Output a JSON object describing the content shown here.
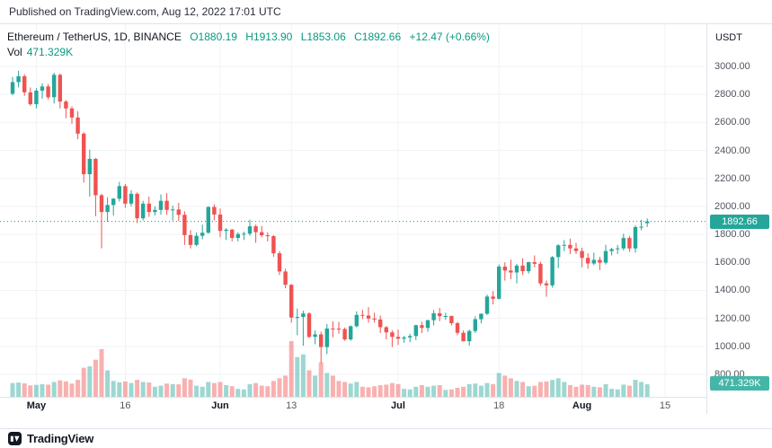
{
  "published_bar": {
    "text": "Published on TradingView.com, Aug 12, 2022 17:01 UTC"
  },
  "legend": {
    "symbol": "Ethereum / TetherUS, 1D, BINANCE",
    "o_label": "O",
    "o_value": "1880.19",
    "h_label": "H",
    "h_value": "1913.90",
    "l_label": "L",
    "l_value": "1853.06",
    "c_label": "C",
    "c_value": "1892.66",
    "change": "+12.47 (+0.66%)",
    "vol_label": "Vol",
    "vol_value": "471.329K"
  },
  "price_axis": {
    "currency": "USDT",
    "labels": [
      "3000.00",
      "2800.00",
      "2600.00",
      "2400.00",
      "2200.00",
      "2000.00",
      "1800.00",
      "1600.00",
      "1400.00",
      "1200.00",
      "1000.00",
      "800.00"
    ],
    "last_price_badge": "1892.66",
    "volume_badge": "471.329K"
  },
  "time_axis": {
    "ticks": [
      {
        "label": "May",
        "idx": 4,
        "major": true
      },
      {
        "label": "16",
        "idx": 19,
        "major": false
      },
      {
        "label": "Jun",
        "idx": 35,
        "major": true
      },
      {
        "label": "13",
        "idx": 47,
        "major": false
      },
      {
        "label": "Jul",
        "idx": 65,
        "major": true
      },
      {
        "label": "18",
        "idx": 82,
        "major": false
      },
      {
        "label": "Aug",
        "idx": 96,
        "major": true
      },
      {
        "label": "15",
        "idx": 110,
        "major": false
      }
    ]
  },
  "footer": {
    "brand": "TradingView"
  },
  "colors": {
    "up": "#26a69a",
    "down": "#ef5350",
    "vol_up": "rgba(38,166,154,0.45)",
    "vol_down": "rgba(239,83,80,0.45)",
    "grid": "#f0f3f7",
    "last_price_line": "#089981",
    "price_badge_bg": "#26a69a",
    "vol_badge_bg": "#44b6a8",
    "value_text": "#089981"
  },
  "chart_data": {
    "type": "candlestick+volume",
    "title": "Ethereum / TetherUS, 1D, BINANCE",
    "symbol": "ETH/USDT",
    "exchange": "BINANCE",
    "interval": "1D",
    "start_date": "2022-04-27",
    "end_date": "2022-08-12",
    "last": {
      "open": 1880.19,
      "high": 1913.9,
      "low": 1853.06,
      "close": 1892.66,
      "change": 12.47,
      "change_pct": 0.66,
      "volume": "471.329K"
    },
    "y_axis": {
      "min": 800,
      "max": 3000,
      "step": 200,
      "unit": "USDT"
    },
    "x_ticks": [
      "May",
      "16",
      "Jun",
      "13",
      "Jul",
      "18",
      "Aug",
      "15"
    ],
    "legend_position": "top-left",
    "grid": true,
    "candles_format": [
      "open",
      "high",
      "low",
      "close",
      "volume_K"
    ],
    "candles": [
      [
        2805,
        2925,
        2795,
        2888,
        520
      ],
      [
        2888,
        2968,
        2850,
        2930,
        540
      ],
      [
        2930,
        2945,
        2790,
        2815,
        510
      ],
      [
        2815,
        2850,
        2720,
        2730,
        430
      ],
      [
        2730,
        2845,
        2700,
        2827,
        450
      ],
      [
        2827,
        2880,
        2770,
        2857,
        480
      ],
      [
        2857,
        2875,
        2765,
        2780,
        460
      ],
      [
        2780,
        2955,
        2735,
        2940,
        560
      ],
      [
        2940,
        2950,
        2700,
        2749,
        620
      ],
      [
        2749,
        2760,
        2630,
        2700,
        580
      ],
      [
        2700,
        2715,
        2590,
        2635,
        500
      ],
      [
        2635,
        2680,
        2480,
        2520,
        640
      ],
      [
        2520,
        2530,
        2170,
        2230,
        1100
      ],
      [
        2230,
        2405,
        2070,
        2340,
        1150
      ],
      [
        2340,
        2345,
        1930,
        2080,
        1400
      ],
      [
        2080,
        2090,
        1700,
        1960,
        1800
      ],
      [
        1960,
        2065,
        1890,
        2010,
        1000
      ],
      [
        2010,
        2060,
        1935,
        2055,
        600
      ],
      [
        2055,
        2175,
        2035,
        2145,
        550
      ],
      [
        2145,
        2160,
        1990,
        2020,
        580
      ],
      [
        2020,
        2115,
        2000,
        2090,
        520
      ],
      [
        2090,
        2100,
        1880,
        1915,
        640
      ],
      [
        1915,
        2040,
        1900,
        2020,
        560
      ],
      [
        2020,
        2070,
        1925,
        1960,
        540
      ],
      [
        1960,
        2000,
        1935,
        1975,
        380
      ],
      [
        1975,
        2085,
        1940,
        2040,
        420
      ],
      [
        2040,
        2095,
        1940,
        1975,
        500
      ],
      [
        1975,
        2005,
        1900,
        1978,
        480
      ],
      [
        1978,
        2025,
        1895,
        1940,
        470
      ],
      [
        1940,
        1965,
        1725,
        1795,
        700
      ],
      [
        1795,
        1830,
        1700,
        1725,
        650
      ],
      [
        1725,
        1815,
        1715,
        1790,
        420
      ],
      [
        1790,
        1870,
        1765,
        1812,
        380
      ],
      [
        1812,
        2000,
        1805,
        1996,
        560
      ],
      [
        1996,
        2015,
        1900,
        1942,
        520
      ],
      [
        1942,
        1985,
        1780,
        1825,
        560
      ],
      [
        1825,
        1845,
        1760,
        1834,
        440
      ],
      [
        1834,
        1840,
        1750,
        1775,
        400
      ],
      [
        1775,
        1815,
        1750,
        1803,
        300
      ],
      [
        1803,
        1820,
        1760,
        1805,
        280
      ],
      [
        1805,
        1905,
        1790,
        1858,
        480
      ],
      [
        1858,
        1870,
        1740,
        1816,
        520
      ],
      [
        1816,
        1860,
        1780,
        1794,
        420
      ],
      [
        1794,
        1815,
        1750,
        1788,
        400
      ],
      [
        1788,
        1795,
        1640,
        1665,
        600
      ],
      [
        1665,
        1680,
        1510,
        1535,
        700
      ],
      [
        1535,
        1555,
        1415,
        1440,
        800
      ],
      [
        1440,
        1445,
        1170,
        1206,
        2100
      ],
      [
        1206,
        1270,
        1080,
        1210,
        1500
      ],
      [
        1210,
        1255,
        1005,
        1235,
        1600
      ],
      [
        1235,
        1245,
        1060,
        1068,
        1000
      ],
      [
        1068,
        1115,
        1015,
        1086,
        800
      ],
      [
        1086,
        1105,
        880,
        995,
        1300
      ],
      [
        995,
        1160,
        945,
        1128,
        900
      ],
      [
        1128,
        1180,
        1065,
        1127,
        800
      ],
      [
        1127,
        1175,
        1090,
        1124,
        600
      ],
      [
        1124,
        1135,
        1040,
        1050,
        560
      ],
      [
        1050,
        1150,
        1040,
        1144,
        500
      ],
      [
        1144,
        1250,
        1135,
        1225,
        560
      ],
      [
        1225,
        1260,
        1195,
        1220,
        380
      ],
      [
        1220,
        1280,
        1170,
        1199,
        360
      ],
      [
        1199,
        1240,
        1170,
        1192,
        400
      ],
      [
        1192,
        1220,
        1095,
        1137,
        440
      ],
      [
        1137,
        1145,
        1050,
        1100,
        460
      ],
      [
        1100,
        1115,
        995,
        1068,
        520
      ],
      [
        1068,
        1120,
        1010,
        1055,
        480
      ],
      [
        1055,
        1075,
        1025,
        1064,
        300
      ],
      [
        1064,
        1090,
        1030,
        1074,
        280
      ],
      [
        1074,
        1155,
        1045,
        1151,
        380
      ],
      [
        1151,
        1175,
        1095,
        1132,
        440
      ],
      [
        1132,
        1190,
        1105,
        1187,
        380
      ],
      [
        1187,
        1260,
        1150,
        1237,
        420
      ],
      [
        1237,
        1275,
        1180,
        1216,
        440
      ],
      [
        1216,
        1240,
        1190,
        1217,
        260
      ],
      [
        1217,
        1220,
        1150,
        1166,
        280
      ],
      [
        1166,
        1175,
        1080,
        1097,
        340
      ],
      [
        1097,
        1115,
        1035,
        1037,
        380
      ],
      [
        1037,
        1120,
        1005,
        1110,
        480
      ],
      [
        1110,
        1215,
        1095,
        1194,
        500
      ],
      [
        1194,
        1235,
        1165,
        1233,
        420
      ],
      [
        1233,
        1370,
        1225,
        1356,
        520
      ],
      [
        1356,
        1395,
        1300,
        1340,
        480
      ],
      [
        1340,
        1585,
        1335,
        1570,
        900
      ],
      [
        1570,
        1600,
        1470,
        1542,
        800
      ],
      [
        1542,
        1620,
        1480,
        1528,
        700
      ],
      [
        1528,
        1590,
        1450,
        1577,
        600
      ],
      [
        1577,
        1630,
        1510,
        1537,
        560
      ],
      [
        1537,
        1605,
        1520,
        1602,
        400
      ],
      [
        1602,
        1650,
        1565,
        1590,
        420
      ],
      [
        1590,
        1605,
        1435,
        1450,
        560
      ],
      [
        1450,
        1470,
        1355,
        1436,
        580
      ],
      [
        1436,
        1645,
        1420,
        1638,
        640
      ],
      [
        1638,
        1730,
        1560,
        1722,
        700
      ],
      [
        1722,
        1760,
        1680,
        1725,
        560
      ],
      [
        1725,
        1770,
        1660,
        1700,
        440
      ],
      [
        1700,
        1740,
        1660,
        1681,
        380
      ],
      [
        1681,
        1705,
        1565,
        1632,
        460
      ],
      [
        1632,
        1665,
        1555,
        1592,
        440
      ],
      [
        1592,
        1670,
        1580,
        1618,
        380
      ],
      [
        1618,
        1640,
        1545,
        1598,
        360
      ],
      [
        1598,
        1725,
        1585,
        1681,
        480
      ],
      [
        1681,
        1705,
        1650,
        1695,
        300
      ],
      [
        1695,
        1725,
        1660,
        1700,
        280
      ],
      [
        1700,
        1805,
        1685,
        1774,
        460
      ],
      [
        1774,
        1788,
        1675,
        1700,
        420
      ],
      [
        1700,
        1865,
        1670,
        1852,
        640
      ],
      [
        1852,
        1905,
        1830,
        1855,
        560
      ],
      [
        1880.19,
        1913.9,
        1853.06,
        1892.66,
        471.329
      ]
    ]
  }
}
